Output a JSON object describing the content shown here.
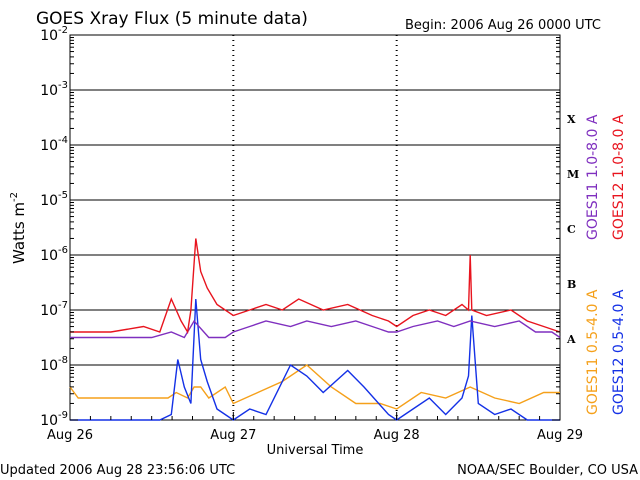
{
  "chart_data": {
    "type": "line",
    "title": "GOES Xray Flux (5 minute data)",
    "begin_label": "Begin:  2006 Aug 26 0000 UTC",
    "xlabel": "Universal Time",
    "ylabel": "Watts m",
    "ylabel_sup": "-2",
    "y_scale": "log",
    "ylim": [
      1e-09,
      0.01
    ],
    "y_ticks": [
      {
        "exp": -9,
        "label": "10",
        "sup": "-9"
      },
      {
        "exp": -8,
        "label": "10",
        "sup": "-8"
      },
      {
        "exp": -7,
        "label": "10",
        "sup": "-7"
      },
      {
        "exp": -6,
        "label": "10",
        "sup": "-6"
      },
      {
        "exp": -5,
        "label": "10",
        "sup": "-5"
      },
      {
        "exp": -4,
        "label": "10",
        "sup": "-4"
      },
      {
        "exp": -3,
        "label": "10",
        "sup": "-3"
      },
      {
        "exp": -2,
        "label": "10",
        "sup": "-2"
      }
    ],
    "xlim": [
      "2006-08-26",
      "2006-08-29"
    ],
    "x_ticks": [
      "Aug 26",
      "Aug 27",
      "Aug 28",
      "Aug 29"
    ],
    "grid": "horizontal at each decade",
    "flare_classes": [
      {
        "label": "X",
        "flux": 0.0003
      },
      {
        "label": "M",
        "flux": 3e-05
      },
      {
        "label": "C",
        "flux": 3e-06
      },
      {
        "label": "B",
        "flux": 3e-07
      },
      {
        "label": "A",
        "flux": 3e-08
      }
    ],
    "legend_placement": "right",
    "series": [
      {
        "name": "GOES11 1.0-8.0 A",
        "color": "#7f2fbf",
        "x_days": [
          0.0,
          0.12,
          0.3,
          0.5,
          0.62,
          0.7,
          0.76,
          0.85,
          0.95,
          1.0,
          1.1,
          1.2,
          1.35,
          1.45,
          1.6,
          1.75,
          1.85,
          1.95,
          2.0,
          2.1,
          2.25,
          2.35,
          2.45,
          2.6,
          2.75,
          2.85,
          2.95,
          3.0
        ],
        "y_exp": [
          -7.5,
          -7.5,
          -7.5,
          -7.5,
          -7.4,
          -7.5,
          -7.2,
          -7.5,
          -7.5,
          -7.4,
          -7.3,
          -7.2,
          -7.3,
          -7.2,
          -7.3,
          -7.2,
          -7.3,
          -7.4,
          -7.4,
          -7.3,
          -7.2,
          -7.3,
          -7.2,
          -7.3,
          -7.2,
          -7.4,
          -7.4,
          -7.5
        ]
      },
      {
        "name": "GOES12 1.0-8.0 A",
        "color": "#e8141e",
        "x_days": [
          0.0,
          0.1,
          0.25,
          0.45,
          0.55,
          0.62,
          0.68,
          0.72,
          0.74,
          0.77,
          0.8,
          0.84,
          0.9,
          1.0,
          1.1,
          1.2,
          1.3,
          1.4,
          1.55,
          1.7,
          1.85,
          1.95,
          2.0,
          2.1,
          2.2,
          2.3,
          2.4,
          2.44,
          2.45,
          2.46,
          2.55,
          2.7,
          2.8,
          2.9,
          3.0
        ],
        "y_exp": [
          -7.4,
          -7.4,
          -7.4,
          -7.3,
          -7.4,
          -6.8,
          -7.2,
          -7.4,
          -7.0,
          -5.7,
          -6.3,
          -6.6,
          -6.9,
          -7.1,
          -7.0,
          -6.9,
          -7.0,
          -6.8,
          -7.0,
          -6.9,
          -7.1,
          -7.2,
          -7.3,
          -7.1,
          -7.0,
          -7.1,
          -6.9,
          -7.0,
          -6.0,
          -7.0,
          -7.1,
          -7.0,
          -7.2,
          -7.3,
          -7.4
        ]
      },
      {
        "name": "GOES11 0.5-4.0 A",
        "color": "#f5a01a",
        "x_days": [
          0.0,
          0.05,
          0.15,
          0.3,
          0.45,
          0.6,
          0.65,
          0.72,
          0.76,
          0.8,
          0.85,
          0.95,
          1.0,
          1.15,
          1.3,
          1.45,
          1.6,
          1.75,
          1.9,
          2.0,
          2.15,
          2.3,
          2.45,
          2.6,
          2.75,
          2.9,
          3.0
        ],
        "y_exp": [
          -8.4,
          -8.6,
          -8.6,
          -8.6,
          -8.6,
          -8.6,
          -8.5,
          -8.6,
          -8.4,
          -8.4,
          -8.6,
          -8.4,
          -8.7,
          -8.5,
          -8.3,
          -8.0,
          -8.4,
          -8.7,
          -8.7,
          -8.8,
          -8.5,
          -8.6,
          -8.4,
          -8.6,
          -8.7,
          -8.5,
          -8.5
        ]
      },
      {
        "name": "GOES12 0.5-4.0 A",
        "color": "#1431e6",
        "x_days": [
          0.0,
          0.1,
          0.25,
          0.4,
          0.55,
          0.62,
          0.66,
          0.7,
          0.74,
          0.77,
          0.8,
          0.84,
          0.9,
          1.0,
          1.1,
          1.2,
          1.35,
          1.45,
          1.55,
          1.7,
          1.8,
          1.95,
          2.0,
          2.1,
          2.2,
          2.3,
          2.4,
          2.44,
          2.46,
          2.5,
          2.6,
          2.7,
          2.8,
          2.9,
          3.0
        ],
        "y_exp": [
          -9.0,
          -9.0,
          -9.0,
          -9.0,
          -9.0,
          -8.9,
          -7.9,
          -8.4,
          -8.7,
          -6.8,
          -7.9,
          -8.3,
          -8.8,
          -9.0,
          -8.8,
          -8.9,
          -8.0,
          -8.2,
          -8.5,
          -8.1,
          -8.4,
          -8.9,
          -9.0,
          -8.8,
          -8.6,
          -8.9,
          -8.6,
          -8.2,
          -7.1,
          -8.7,
          -8.9,
          -8.8,
          -9.0,
          -9.0,
          -9.0
        ]
      }
    ]
  },
  "footer": {
    "updated": "Updated 2006 Aug 28 23:56:06 UTC",
    "credit": "NOAA/SEC Boulder, CO USA"
  }
}
